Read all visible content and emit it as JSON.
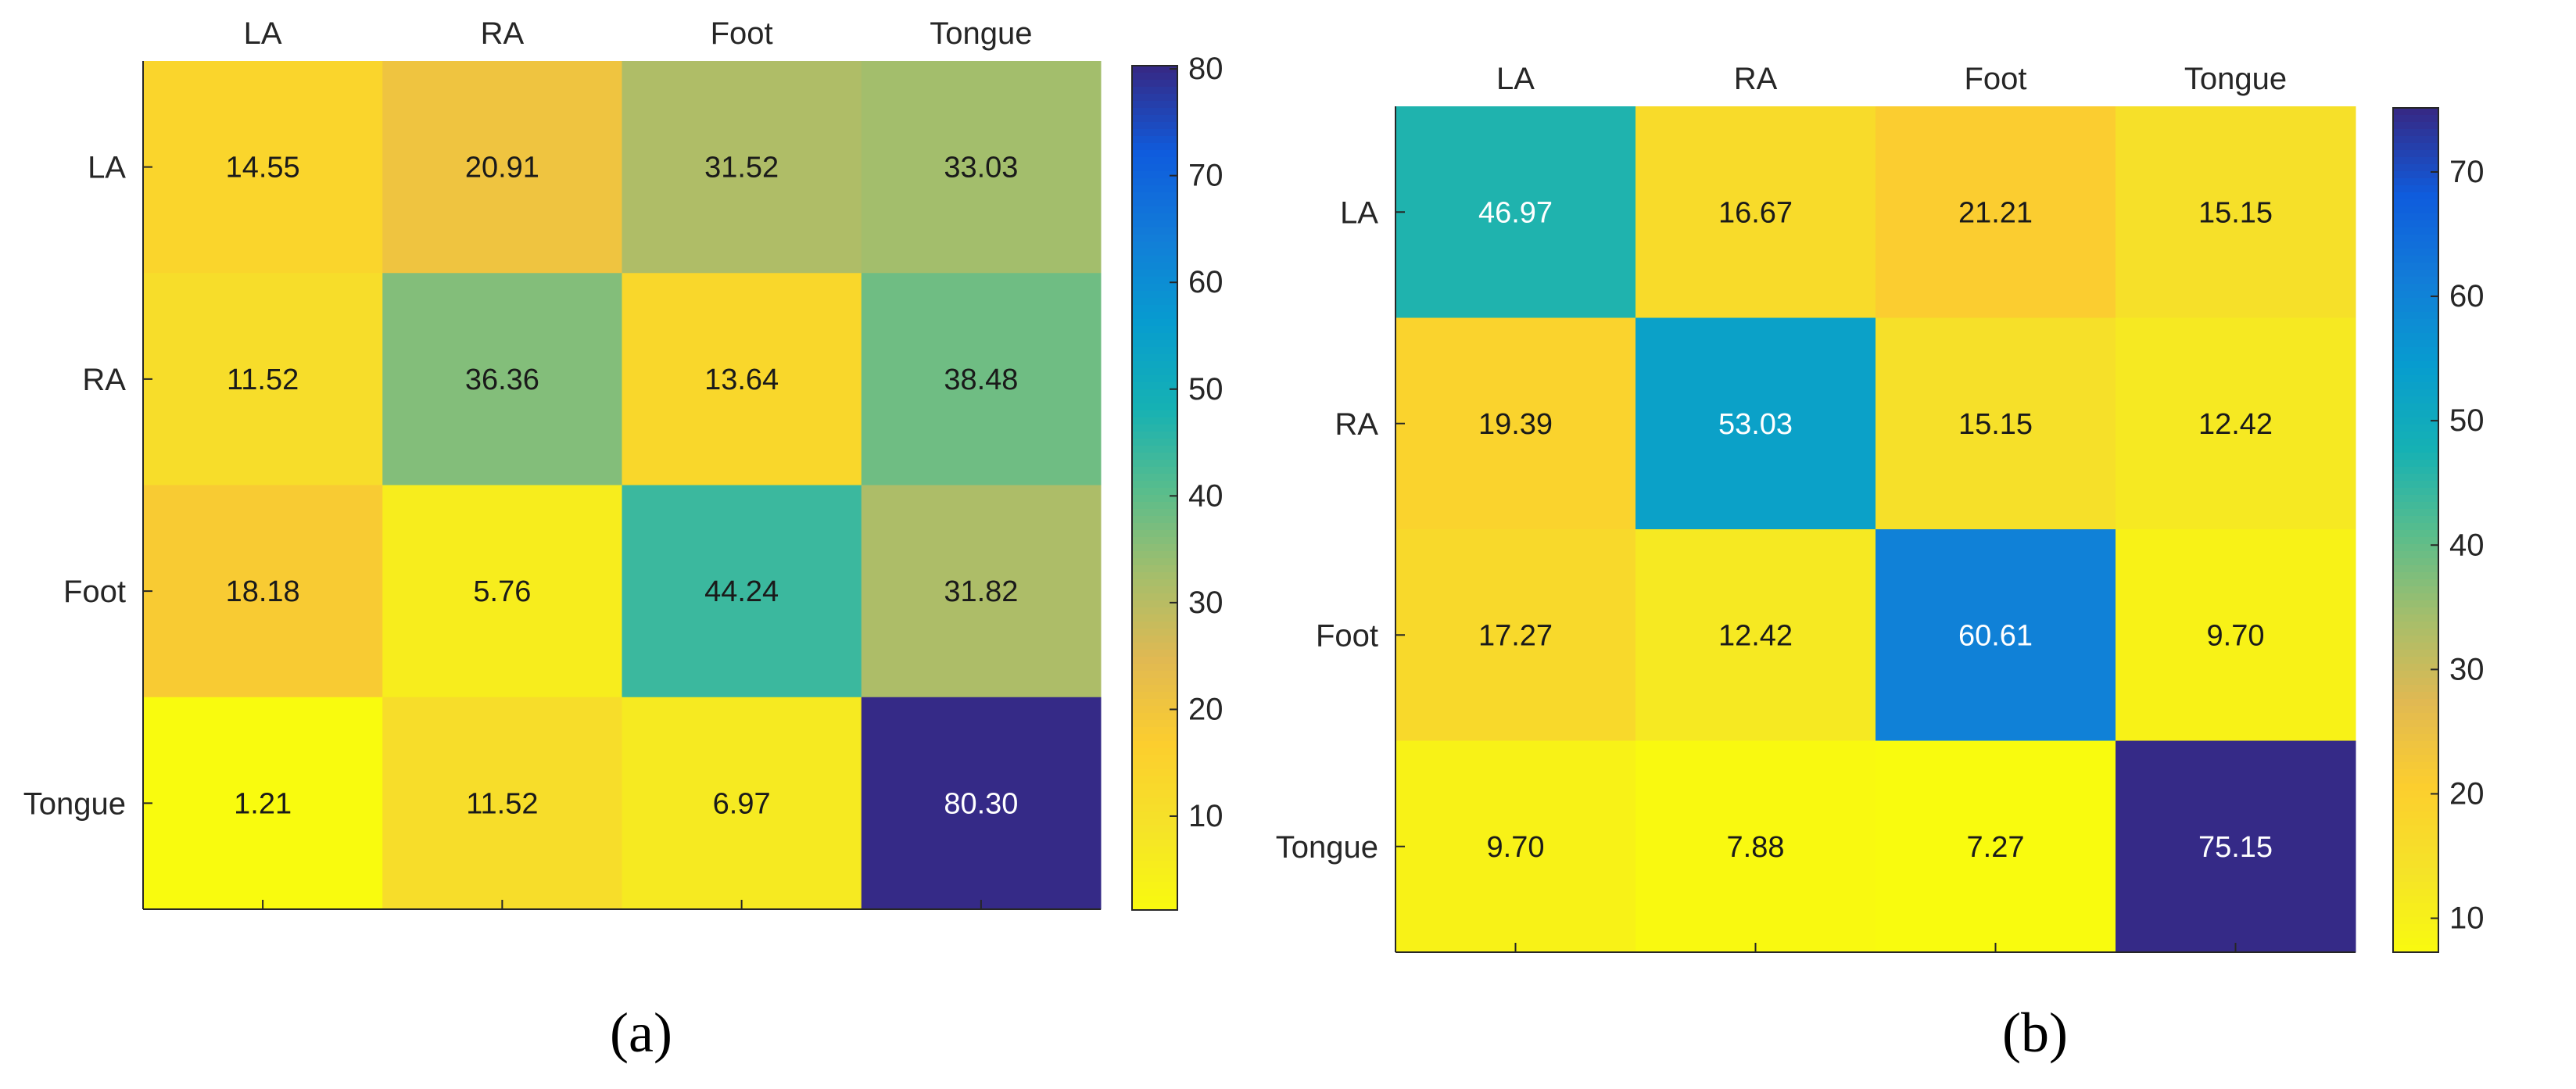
{
  "chart_data": [
    {
      "type": "heatmap",
      "caption": "(a)",
      "x_categories": [
        "LA",
        "RA",
        "Foot",
        "Tongue"
      ],
      "y_categories": [
        "LA",
        "RA",
        "Foot",
        "Tongue"
      ],
      "values": [
        [
          14.55,
          20.91,
          31.52,
          33.03
        ],
        [
          11.52,
          36.36,
          13.64,
          38.48
        ],
        [
          18.18,
          5.76,
          44.24,
          31.82
        ],
        [
          1.21,
          11.52,
          6.97,
          80.3
        ]
      ],
      "colorbar": {
        "min": 1.21,
        "max": 80.3,
        "ticks": [
          10,
          20,
          30,
          40,
          50,
          60,
          70,
          80
        ]
      },
      "colormap": "parula-reversed"
    },
    {
      "type": "heatmap",
      "caption": "(b)",
      "x_categories": [
        "LA",
        "RA",
        "Foot",
        "Tongue"
      ],
      "y_categories": [
        "LA",
        "RA",
        "Foot",
        "Tongue"
      ],
      "values": [
        [
          46.97,
          16.67,
          21.21,
          15.15
        ],
        [
          19.39,
          53.03,
          15.15,
          12.42
        ],
        [
          17.27,
          12.42,
          60.61,
          9.7
        ],
        [
          9.7,
          7.88,
          7.27,
          75.15
        ]
      ],
      "colorbar": {
        "min": 7.27,
        "max": 75.15,
        "ticks": [
          10,
          20,
          30,
          40,
          50,
          60,
          70
        ]
      },
      "colormap": "parula-reversed"
    }
  ]
}
